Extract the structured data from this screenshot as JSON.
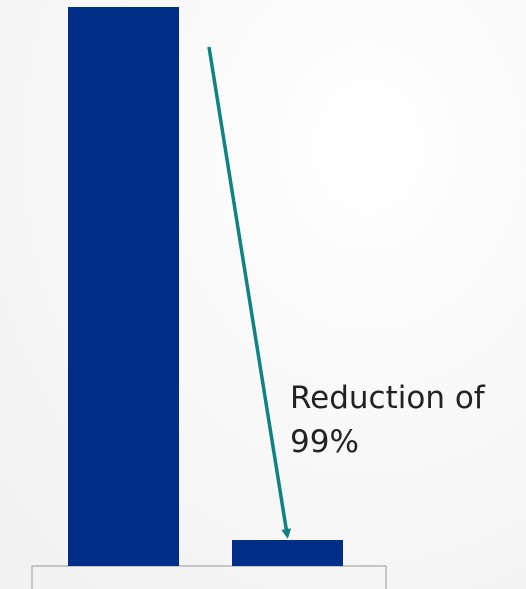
{
  "chart_data": {
    "type": "bar",
    "categories": [
      "",
      ""
    ],
    "values": [
      100,
      1
    ],
    "bar_color": "#002e87",
    "title": "",
    "xlabel": "",
    "ylabel": "",
    "ylim": [
      0,
      100
    ],
    "grid": false,
    "legend": "none",
    "annotation": {
      "line1": "Reduction of",
      "line2": "99%",
      "arrow_color": "#0f8282",
      "from_category": 0,
      "to_category": 1
    },
    "axis_box_color": "#a9a9a9"
  }
}
